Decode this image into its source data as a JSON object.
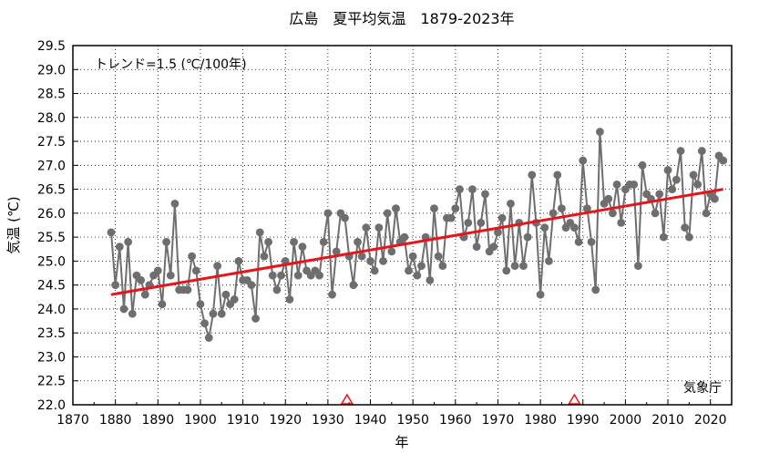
{
  "chart_data": {
    "type": "line",
    "title": "広島　夏平均気温　1879-2023年",
    "xlabel": "年",
    "ylabel": "気温 (℃)",
    "trend_label": "トレンド=1.5 (℃/100年)",
    "source_label": "気象庁",
    "xlim": [
      1870,
      2025
    ],
    "ylim": [
      22.0,
      29.5
    ],
    "x_ticks": [
      1870,
      1880,
      1890,
      1900,
      1910,
      1920,
      1930,
      1940,
      1950,
      1960,
      1970,
      1980,
      1990,
      2000,
      2010,
      2020
    ],
    "y_ticks": [
      22.0,
      22.5,
      23.0,
      23.5,
      24.0,
      24.5,
      25.0,
      25.5,
      26.0,
      26.5,
      27.0,
      27.5,
      28.0,
      28.5,
      29.0,
      29.5
    ],
    "x_tick_labels": [
      "1870",
      "1880",
      "1890",
      "1900",
      "1910",
      "1920",
      "1930",
      "1940",
      "1950",
      "1960",
      "1970",
      "1980",
      "1990",
      "2000",
      "2010",
      "2020"
    ],
    "y_tick_labels": [
      "22.0",
      "22.5",
      "23.0",
      "23.5",
      "24.0",
      "24.5",
      "25.0",
      "25.5",
      "26.0",
      "26.5",
      "27.0",
      "27.5",
      "28.0",
      "28.5",
      "29.0",
      "29.5"
    ],
    "grid": true,
    "series": [
      {
        "color": "#6e6e6e",
        "x": [
          1879,
          1880,
          1881,
          1882,
          1883,
          1884,
          1885,
          1886,
          1887,
          1888,
          1889,
          1890,
          1891,
          1892,
          1893,
          1894,
          1895,
          1896,
          1897,
          1898,
          1899,
          1900,
          1901,
          1902,
          1903,
          1904,
          1905,
          1906,
          1907,
          1908,
          1909,
          1910,
          1911,
          1912,
          1913,
          1914,
          1915,
          1916,
          1917,
          1918,
          1919,
          1920,
          1921,
          1922,
          1923,
          1924,
          1925,
          1926,
          1927,
          1928,
          1929,
          1930,
          1931,
          1932,
          1933,
          1934,
          1935,
          1936,
          1937,
          1938,
          1939,
          1940,
          1941,
          1942,
          1943,
          1944,
          1945,
          1946,
          1947,
          1948,
          1949,
          1950,
          1951,
          1952,
          1953,
          1954,
          1955,
          1956,
          1957,
          1958,
          1959,
          1960,
          1961,
          1962,
          1963,
          1964,
          1965,
          1966,
          1967,
          1968,
          1969,
          1970,
          1971,
          1972,
          1973,
          1974,
          1975,
          1976,
          1977,
          1978,
          1979,
          1980,
          1981,
          1982,
          1983,
          1984,
          1985,
          1986,
          1987,
          1988,
          1989,
          1990,
          1991,
          1992,
          1993,
          1994,
          1995,
          1996,
          1997,
          1998,
          1999,
          2000,
          2001,
          2002,
          2003,
          2004,
          2005,
          2006,
          2007,
          2008,
          2009,
          2010,
          2011,
          2012,
          2013,
          2014,
          2015,
          2016,
          2017,
          2018,
          2019,
          2020,
          2021,
          2022,
          2023
        ],
        "values": [
          25.6,
          24.5,
          25.3,
          24.0,
          25.4,
          23.9,
          24.7,
          24.6,
          24.3,
          24.5,
          24.7,
          24.8,
          24.1,
          25.4,
          24.7,
          26.2,
          24.4,
          24.4,
          24.4,
          25.1,
          24.8,
          24.1,
          23.7,
          23.4,
          23.9,
          24.9,
          23.9,
          24.3,
          24.1,
          24.2,
          25.0,
          24.6,
          24.6,
          24.5,
          23.8,
          25.6,
          25.1,
          25.4,
          24.7,
          24.4,
          24.7,
          25.0,
          24.2,
          25.4,
          24.7,
          25.3,
          24.8,
          24.7,
          24.8,
          24.7,
          25.4,
          26.0,
          24.3,
          25.2,
          26.0,
          25.9,
          25.1,
          24.5,
          25.4,
          25.1,
          25.7,
          25.0,
          24.8,
          25.7,
          25.0,
          26.0,
          25.2,
          26.1,
          25.4,
          25.5,
          24.8,
          25.1,
          24.7,
          24.9,
          25.5,
          24.6,
          26.1,
          25.1,
          24.9,
          25.9,
          25.9,
          26.1,
          26.5,
          25.5,
          25.8,
          26.5,
          25.3,
          25.8,
          26.4,
          25.2,
          25.3,
          25.6,
          25.9,
          24.8,
          26.2,
          24.9,
          25.8,
          24.9,
          25.5,
          26.8,
          25.8,
          24.3,
          25.7,
          25.0,
          26.0,
          26.8,
          26.1,
          25.7,
          25.8,
          25.7,
          25.4,
          27.1,
          26.1,
          25.4,
          24.4,
          27.7,
          26.2,
          26.3,
          26.0,
          26.6,
          25.8,
          26.5,
          26.6,
          26.6,
          24.9,
          27.0,
          26.4,
          26.3,
          26.0,
          26.4,
          25.5,
          26.9,
          26.5,
          26.7,
          27.3,
          25.7,
          25.5,
          26.8,
          26.6,
          27.3,
          26.0,
          26.4,
          26.3,
          27.2,
          27.1
        ]
      }
    ],
    "trend": {
      "color": "#e8141c",
      "x": [
        1879,
        2023
      ],
      "y": [
        24.3,
        26.5
      ]
    },
    "markers": {
      "color": "#e8141c",
      "x": [
        1934.5,
        1988
      ]
    }
  }
}
